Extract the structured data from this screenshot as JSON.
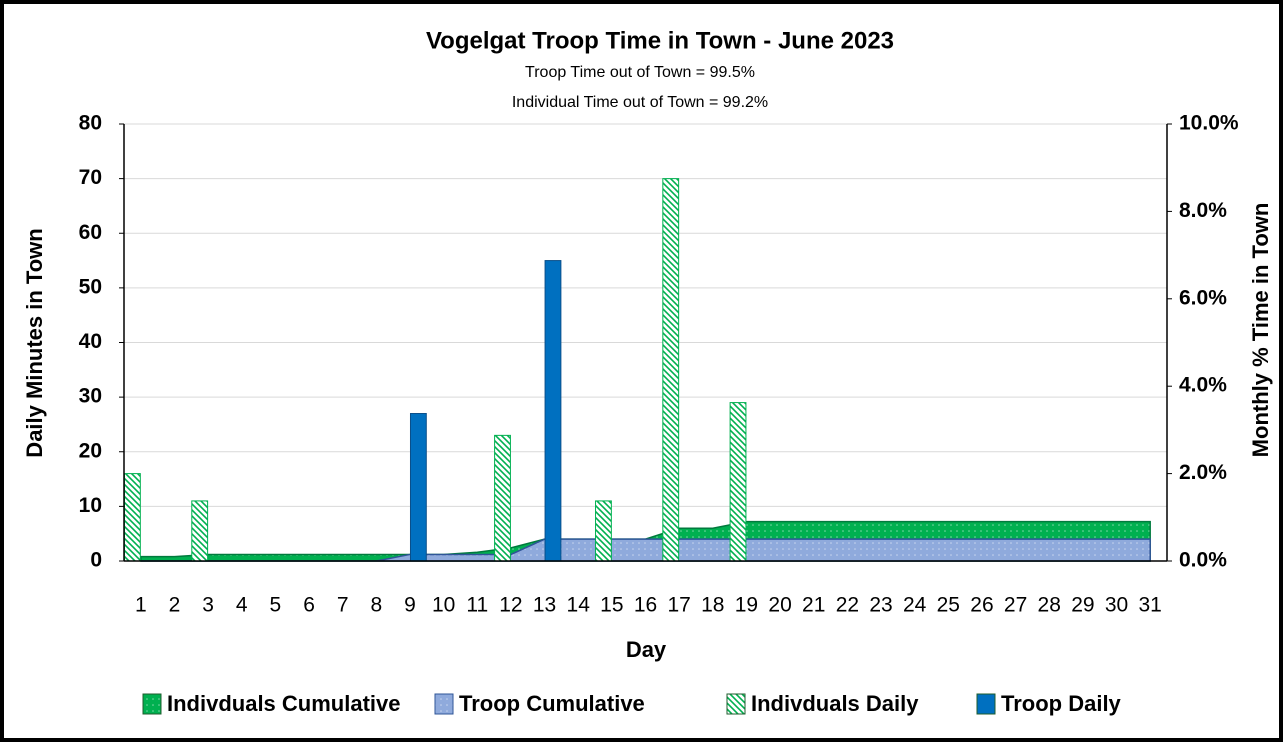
{
  "chart_data": {
    "type": "bar",
    "title": "Vogelgat Troop Time in Town - June 2023",
    "subtitle": [
      "Troop Time out of Town = 99.5%",
      "Individual Time out of Town = 99.2%"
    ],
    "x_label": "Day",
    "y_label": "Daily Minutes in Town",
    "y2_label": "Monthly % Time in Town",
    "categories": [
      "1",
      "2",
      "3",
      "4",
      "5",
      "6",
      "7",
      "8",
      "9",
      "10",
      "11",
      "12",
      "13",
      "14",
      "15",
      "16",
      "17",
      "18",
      "19",
      "20",
      "21",
      "22",
      "23",
      "24",
      "25",
      "26",
      "27",
      "28",
      "29",
      "30",
      "31"
    ],
    "ylim": [
      0,
      80
    ],
    "yticks": [
      0,
      10,
      20,
      30,
      40,
      50,
      60,
      70,
      80
    ],
    "y2lim": [
      0,
      10
    ],
    "y2ticks": [
      {
        "value": 0,
        "label": "0.0%"
      },
      {
        "value": 2,
        "label": "2.0%"
      },
      {
        "value": 4,
        "label": "4.0%"
      },
      {
        "value": 6,
        "label": "6.0%"
      },
      {
        "value": 8,
        "label": "8.0%"
      },
      {
        "value": 10,
        "label": "10.0%"
      }
    ],
    "grid": true,
    "legend": "bottom",
    "series": [
      {
        "name": "Indivduals Cumulative",
        "type": "area",
        "axis": "y2",
        "color": "#00b050",
        "values": [
          0.1,
          0.1,
          0.15,
          0.15,
          0.15,
          0.15,
          0.15,
          0.15,
          0.15,
          0.15,
          0.2,
          0.3,
          0.5,
          0.5,
          0.5,
          0.5,
          0.75,
          0.75,
          0.9,
          0.9,
          0.9,
          0.9,
          0.9,
          0.9,
          0.9,
          0.9,
          0.9,
          0.9,
          0.9,
          0.9,
          0.9
        ]
      },
      {
        "name": "Troop Cumulative",
        "type": "area",
        "axis": "y2",
        "color": "#8faadc",
        "values": [
          0,
          0,
          0,
          0,
          0,
          0,
          0,
          0,
          0.15,
          0.15,
          0.15,
          0.15,
          0.5,
          0.5,
          0.5,
          0.5,
          0.5,
          0.5,
          0.5,
          0.5,
          0.5,
          0.5,
          0.5,
          0.5,
          0.5,
          0.5,
          0.5,
          0.5,
          0.5,
          0.5,
          0.5
        ]
      },
      {
        "name": "Indivduals Daily",
        "type": "bar",
        "color": "#00b050",
        "values": [
          16,
          0,
          11,
          0,
          0,
          0,
          0,
          0,
          0,
          0,
          0,
          23,
          0,
          0,
          11,
          0,
          70,
          0,
          29,
          0,
          0,
          0,
          0,
          0,
          0,
          0,
          0,
          0,
          0,
          0,
          0
        ]
      },
      {
        "name": "Troop Daily",
        "type": "bar",
        "color": "#0070c0",
        "values": [
          0,
          0,
          0,
          0,
          0,
          0,
          0,
          0,
          27,
          0,
          0,
          0,
          55,
          0,
          0,
          0,
          0,
          0,
          0,
          0,
          0,
          0,
          0,
          0,
          0,
          0,
          0,
          0,
          0,
          0,
          0
        ]
      }
    ]
  }
}
